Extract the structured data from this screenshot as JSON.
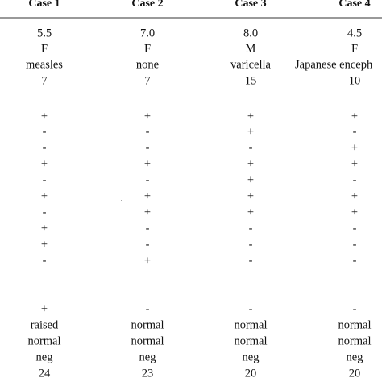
{
  "table": {
    "header": [
      "Case 1",
      "Case 2",
      "Case 3",
      "Case 4"
    ],
    "rows": [
      [
        "5.5",
        "7.0",
        "8.0",
        "4.5"
      ],
      [
        "F",
        "F",
        "M",
        "F"
      ],
      [
        "measles",
        "none",
        "varicella",
        "Japanese enceph"
      ],
      [
        "7",
        "7",
        "15",
        "10"
      ],
      [
        "+",
        "+",
        "+",
        "+"
      ],
      [
        "-",
        "-",
        "+",
        "-"
      ],
      [
        "-",
        "-",
        "-",
        "+"
      ],
      [
        "+",
        "+",
        "+",
        "+"
      ],
      [
        "-",
        "-",
        "+",
        "-"
      ],
      [
        "+",
        "+",
        "+",
        "+"
      ],
      [
        "-",
        "+",
        "+",
        "+"
      ],
      [
        "+",
        "-",
        "-",
        "-"
      ],
      [
        "+",
        "-",
        "-",
        "-"
      ],
      [
        "-",
        "+",
        "-",
        "-"
      ],
      [
        "+",
        "-",
        "-",
        "-"
      ],
      [
        "raised",
        "normal",
        "normal",
        "normal"
      ],
      [
        "normal",
        "normal",
        "normal",
        "normal"
      ],
      [
        "neg",
        "neg",
        "neg",
        "neg"
      ],
      [
        "24",
        "23",
        "20",
        "20"
      ]
    ]
  }
}
